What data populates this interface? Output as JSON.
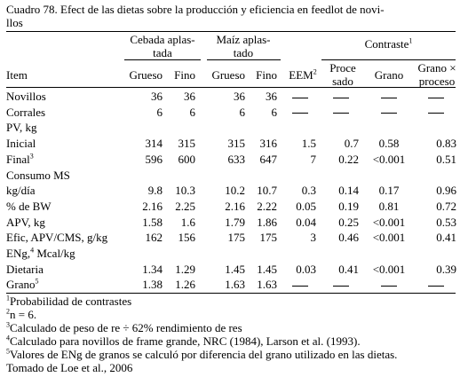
{
  "title": "Cuadro 78. Efect de las dietas sobre la producción y eficiencia en feedlot de novi-llos",
  "title_line1": "Cuadro 78. Efect de las dietas sobre la producción y eficiencia en feedlot de novi-",
  "title_line2": "llos",
  "groups": {
    "cebada_l1": "Cebada aplas-",
    "cebada_l2": "tada",
    "maiz_l1": "Maíz aplas-",
    "maiz_l2": "tado",
    "contraste": "Contraste",
    "contraste_sup": "1"
  },
  "columns": {
    "item": "Item",
    "grueso1": "Grueso",
    "fino1": "Fino",
    "grueso2": "Grueso",
    "fino2": "Fino",
    "eem": "EEM",
    "eem_sup": "2",
    "proceso_l1": "Proce",
    "proceso_l2": "sado",
    "grano": "Grano",
    "gxp_l1": "Grano ×",
    "gxp_l2": "proceso"
  },
  "rows": [
    {
      "label": "Novillos",
      "sup": "",
      "vals": [
        "36",
        "36",
        "36",
        "36",
        "—",
        "—",
        "—",
        "—"
      ]
    },
    {
      "label": "Corrales",
      "sup": "",
      "vals": [
        "6",
        "6",
        "6",
        "6",
        "—",
        "—",
        "—",
        "—"
      ]
    },
    {
      "label": "PV, kg",
      "sup": "",
      "vals": [
        "",
        "",
        "",
        "",
        "",
        "",
        "",
        ""
      ]
    },
    {
      "label": "Inicial",
      "sup": "",
      "vals": [
        "314",
        "315",
        "315",
        "316",
        "1.5",
        "0.7",
        "0.58",
        "0.83"
      ]
    },
    {
      "label": "Final",
      "sup": "3",
      "vals": [
        "596",
        "600",
        "633",
        "647",
        "7",
        "0.22",
        "<0.001",
        "0.51"
      ]
    },
    {
      "label": "Consumo MS",
      "sup": "",
      "vals": [
        "",
        "",
        "",
        "",
        "",
        "",
        "",
        ""
      ]
    },
    {
      "label": "kg/día",
      "sup": "",
      "vals": [
        "9.8",
        "10.3",
        "10.2",
        "10.7",
        "0.3",
        "0.14",
        "0.17",
        "0.96"
      ]
    },
    {
      "label": "% de BW",
      "sup": "",
      "vals": [
        "2.16",
        "2.25",
        "2.16",
        "2.22",
        "0.05",
        "0.19",
        "0.81",
        "0.72"
      ]
    },
    {
      "label": "APV, kg",
      "sup": "",
      "vals": [
        "1.58",
        "1.6",
        "1.79",
        "1.86",
        "0.04",
        "0.25",
        "<0.001",
        "0.53"
      ]
    },
    {
      "label": "Efic, APV/CMS, g/kg",
      "sup": "",
      "vals": [
        "162",
        "156",
        "175",
        "175",
        "3",
        "0.46",
        "<0.001",
        "0.41"
      ]
    },
    {
      "label": "ENg,",
      "sup": "4",
      "label_after": " Mcal/kg",
      "vals": [
        "",
        "",
        "",
        "",
        "",
        "",
        "",
        ""
      ]
    },
    {
      "label": "Dietaria",
      "sup": "",
      "vals": [
        "1.34",
        "1.29",
        "1.45",
        "1.45",
        "0.03",
        "0.41",
        "<0.001",
        "0.39"
      ]
    },
    {
      "label": "Grano",
      "sup": "5",
      "vals": [
        "1.38",
        "1.26",
        "1.63",
        "1.63",
        "—",
        "—",
        "—",
        "—"
      ]
    }
  ],
  "footnotes": [
    {
      "sup": "1",
      "text": "Probabilidad de contrastes"
    },
    {
      "sup": "2",
      "text": "n = 6."
    },
    {
      "sup": "3",
      "text": "Calculado de peso de re ÷ 62% rendimiento de res"
    },
    {
      "sup": "4",
      "text": "Calculado para novillos de frame grande, NRC (1984), Larson et al. (1993)."
    },
    {
      "sup": "5",
      "text": "Valores de  ENg de granos se calculó por diferencia del grano utilizado en las dietas."
    }
  ],
  "source": "Tomado de Loe et al., 2006"
}
